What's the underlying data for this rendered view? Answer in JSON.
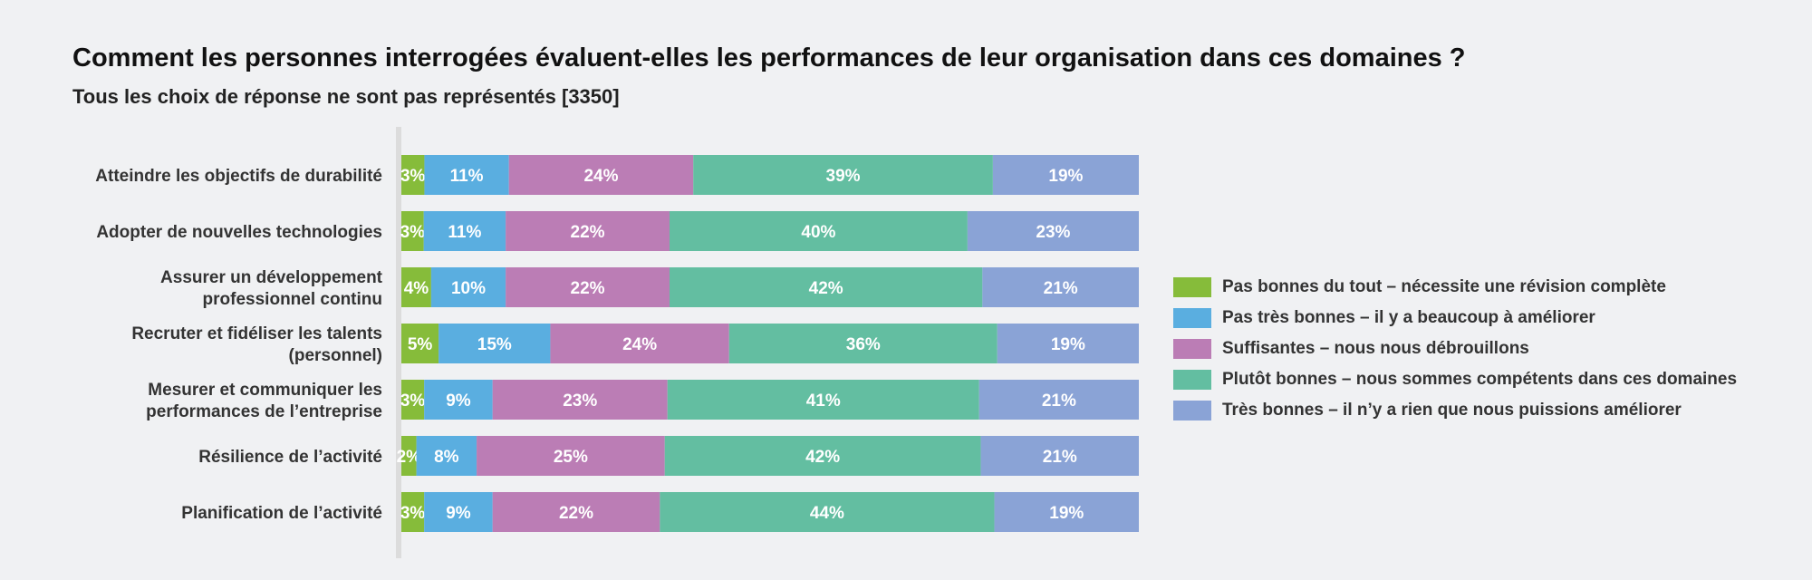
{
  "title": "Comment les personnes interrogées évaluent-elles les performances de leur organisation dans ces domaines ?",
  "subtitle": "Tous les choix de réponse ne sont pas représentés [3350]",
  "chart_data": {
    "type": "bar",
    "orientation": "horizontal",
    "stacked": true,
    "title": "Comment les personnes interrogées évaluent-elles les performances de leur organisation dans ces domaines ?",
    "subtitle": "Tous les choix de réponse ne sont pas représentés [3350]",
    "categories": [
      [
        "Atteindre les objectifs de durabilité"
      ],
      [
        "Adopter de nouvelles technologies"
      ],
      [
        "Assurer un développement",
        "professionnel continu"
      ],
      [
        "Recruter et fidéliser les talents",
        "(personnel)"
      ],
      [
        "Mesurer et communiquer les",
        "performances de l’entreprise"
      ],
      [
        "Résilience de l’activité"
      ],
      [
        "Planification de l’activité"
      ]
    ],
    "series": [
      {
        "name": "Pas bonnes du tout – nécessite une révision complète",
        "color": "#86bc3a",
        "values": [
          3,
          3,
          4,
          5,
          3,
          2,
          3
        ]
      },
      {
        "name": "Pas très bonnes – il y a beaucoup à améliorer",
        "color": "#5aaee0",
        "values": [
          11,
          11,
          10,
          15,
          9,
          8,
          9
        ]
      },
      {
        "name": "Suffisantes – nous nous débrouillons",
        "color": "#bb7db5",
        "values": [
          24,
          22,
          22,
          24,
          23,
          25,
          22
        ]
      },
      {
        "name": "Plutôt bonnes – nous sommes compétents dans ces domaines",
        "color": "#63bea1",
        "values": [
          39,
          40,
          42,
          36,
          41,
          42,
          44
        ]
      },
      {
        "name": "Très bonnes – il n’y a rien que nous puissions améliorer",
        "color": "#8aa3d6",
        "values": [
          19,
          23,
          21,
          19,
          21,
          21,
          19
        ]
      }
    ],
    "value_suffix": "%",
    "legend_position": "right",
    "grid": false
  }
}
